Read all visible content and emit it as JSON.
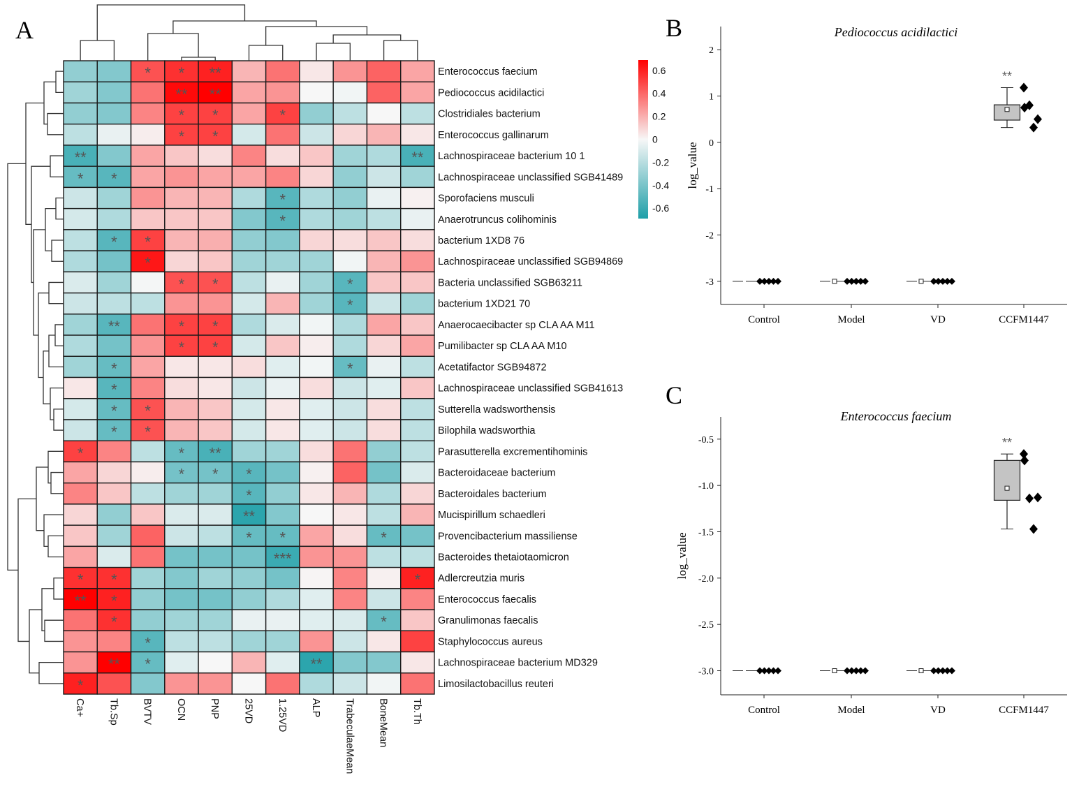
{
  "panels": {
    "a": "A",
    "b": "B",
    "c": "C"
  },
  "chart_data": [
    {
      "type": "heatmap",
      "panel": "A",
      "columns": [
        "Ca+",
        "Tb.Sp",
        "BVTV",
        "OCN",
        "PNP",
        "25VD",
        "1.25VD",
        "ALP",
        "TrabeculaeMean",
        "BoneMean",
        "Tb.Th"
      ],
      "rows": [
        "Enterococcus faecium",
        "Pediococcus acidilactici",
        "Clostridiales bacterium",
        "Enterococcus gallinarum",
        "Lachnospiraceae bacterium 10 1",
        "Lachnospiraceae unclassified SGB41489",
        "Sporofaciens musculi",
        "Anaerotruncus colihominis",
        "bacterium 1XD8 76",
        "Lachnospiraceae unclassified SGB94869",
        "Bacteria unclassified SGB63211",
        "bacterium 1XD21 70",
        "Anaerocaecibacter sp CLA AA M11",
        "Pumilibacter sp CLA AA M10",
        "Acetatifactor SGB94872",
        "Lachnospiraceae unclassified SGB41613",
        "Sutterella wadsworthensis",
        "Bilophila wadsworthia",
        "Parasutterella excrementihominis",
        "Bacteroidaceae bacterium",
        "Bacteroidales bacterium",
        "Mucispirillum schaedleri",
        "Provencibacterium massiliense",
        "Bacteroides thetaiotaomicron",
        "Adlercreutzia muris",
        "Enterococcus faecalis",
        "Granulimonas faecalis",
        "Staphylococcus aureus",
        "Lachnospiraceae bacterium MD329",
        "Limosilactobacillus reuteri"
      ],
      "values": [
        [
          -0.35,
          -0.4,
          0.5,
          0.6,
          0.65,
          0.2,
          0.4,
          0.05,
          0.3,
          0.45,
          0.25
        ],
        [
          -0.3,
          -0.4,
          0.4,
          0.72,
          0.75,
          0.25,
          0.3,
          0,
          -0.02,
          0.45,
          0.25
        ],
        [
          -0.35,
          -0.4,
          0.35,
          0.55,
          0.55,
          0.25,
          0.55,
          -0.35,
          -0.2,
          0,
          -0.2
        ],
        [
          -0.2,
          -0.05,
          0.03,
          0.55,
          0.55,
          -0.12,
          0.4,
          -0.15,
          0.1,
          0.2,
          0.05
        ],
        [
          -0.6,
          -0.4,
          0.25,
          0.15,
          0.08,
          0.35,
          0.08,
          0.15,
          -0.3,
          -0.25,
          -0.6
        ],
        [
          -0.5,
          -0.55,
          0.25,
          0.3,
          0.25,
          0.25,
          0.35,
          0.1,
          -0.35,
          -0.15,
          -0.3
        ],
        [
          -0.15,
          -0.3,
          0.3,
          0.2,
          0.2,
          -0.25,
          -0.55,
          -0.25,
          -0.35,
          -0.05,
          0.02
        ],
        [
          -0.12,
          -0.25,
          0.15,
          0.15,
          0.15,
          -0.4,
          -0.55,
          -0.25,
          -0.3,
          -0.2,
          -0.05
        ],
        [
          -0.2,
          -0.55,
          0.55,
          0.2,
          0.22,
          -0.35,
          -0.4,
          0.1,
          0.08,
          0.15,
          0.08
        ],
        [
          -0.25,
          -0.45,
          0.68,
          0.1,
          0.15,
          -0.3,
          -0.3,
          -0.3,
          -0.02,
          0.2,
          0.3
        ],
        [
          -0.1,
          -0.3,
          -0.01,
          0.5,
          0.5,
          -0.2,
          -0.05,
          -0.3,
          -0.55,
          0.15,
          0.15
        ],
        [
          -0.15,
          -0.2,
          -0.2,
          0.3,
          0.3,
          -0.12,
          0.2,
          -0.3,
          -0.55,
          -0.15,
          -0.3
        ],
        [
          -0.3,
          -0.55,
          0.4,
          0.55,
          0.55,
          -0.25,
          -0.1,
          -0.02,
          -0.25,
          0.25,
          0.15
        ],
        [
          -0.25,
          -0.45,
          0.3,
          0.55,
          0.55,
          -0.12,
          0.15,
          0.03,
          -0.25,
          0.1,
          0.25
        ],
        [
          -0.3,
          -0.5,
          0.25,
          0.05,
          0.05,
          0.08,
          -0.08,
          -0.02,
          -0.5,
          -0.05,
          -0.2
        ],
        [
          0.05,
          -0.55,
          0.35,
          0.08,
          0.05,
          -0.15,
          -0.05,
          0.08,
          -0.15,
          -0.08,
          0.15
        ],
        [
          -0.12,
          -0.5,
          0.5,
          0.2,
          0.15,
          -0.12,
          0.05,
          -0.08,
          -0.15,
          0.08,
          -0.2
        ],
        [
          -0.15,
          -0.5,
          0.5,
          0.2,
          0.15,
          -0.12,
          0.05,
          -0.08,
          -0.15,
          0.08,
          -0.2
        ],
        [
          0.55,
          0.35,
          -0.2,
          -0.5,
          -0.6,
          -0.3,
          -0.3,
          0.08,
          0.4,
          -0.35,
          -0.2
        ],
        [
          0.25,
          0.1,
          0.03,
          -0.45,
          -0.45,
          -0.55,
          -0.45,
          0.02,
          0.45,
          -0.45,
          -0.1
        ],
        [
          0.35,
          0.15,
          -0.2,
          -0.3,
          -0.3,
          -0.55,
          -0.35,
          0.05,
          0.2,
          -0.25,
          0.1
        ],
        [
          0.1,
          -0.35,
          0.15,
          -0.1,
          -0.1,
          -0.7,
          -0.4,
          0,
          0.05,
          -0.2,
          0.2
        ],
        [
          0.15,
          -0.3,
          0.45,
          -0.15,
          -0.2,
          -0.5,
          -0.5,
          0.25,
          0.08,
          -0.5,
          -0.45
        ],
        [
          0.25,
          -0.1,
          0.4,
          -0.45,
          -0.45,
          -0.45,
          -0.65,
          0.3,
          0.3,
          -0.2,
          -0.2
        ],
        [
          0.6,
          0.6,
          -0.3,
          -0.4,
          -0.3,
          -0.35,
          -0.45,
          0.01,
          0.35,
          0.02,
          0.65
        ],
        [
          0.75,
          0.65,
          -0.35,
          -0.45,
          -0.45,
          -0.35,
          -0.25,
          -0.08,
          0.35,
          -0.15,
          0.35
        ],
        [
          0.4,
          0.6,
          -0.35,
          -0.3,
          -0.3,
          -0.05,
          -0.05,
          -0.08,
          -0.1,
          -0.5,
          0.15
        ],
        [
          0.3,
          0.35,
          -0.55,
          -0.2,
          -0.2,
          -0.3,
          -0.3,
          0.3,
          -0.15,
          0.05,
          0.55
        ],
        [
          0.3,
          0.75,
          -0.5,
          -0.08,
          0,
          0.2,
          -0.08,
          -0.7,
          -0.4,
          -0.4,
          0.05
        ],
        [
          0.65,
          0.5,
          -0.4,
          0.3,
          0.3,
          0,
          0.4,
          -0.25,
          -0.15,
          -0.02,
          0.4
        ]
      ],
      "significance": [
        [
          "",
          "",
          "*",
          "*",
          "**",
          "",
          "",
          "",
          "",
          "",
          ""
        ],
        [
          "",
          "",
          "",
          "**",
          "**",
          "",
          "",
          "",
          "",
          "",
          ""
        ],
        [
          "",
          "",
          "",
          "*",
          "*",
          "",
          "*",
          "",
          "",
          "",
          ""
        ],
        [
          "",
          "",
          "",
          "*",
          "*",
          "",
          "",
          "",
          "",
          "",
          ""
        ],
        [
          "**",
          "",
          "",
          "",
          "",
          "",
          "",
          "",
          "",
          "",
          "**"
        ],
        [
          "*",
          "*",
          "",
          "",
          "",
          "",
          "",
          "",
          "",
          "",
          ""
        ],
        [
          "",
          "",
          "",
          "",
          "",
          "",
          "*",
          "",
          "",
          "",
          ""
        ],
        [
          "",
          "",
          "",
          "",
          "",
          "",
          "*",
          "",
          "",
          "",
          ""
        ],
        [
          "",
          "*",
          "*",
          "",
          "",
          "",
          "",
          "",
          "",
          "",
          ""
        ],
        [
          "",
          "",
          "*",
          "",
          "",
          "",
          "",
          "",
          "",
          "",
          ""
        ],
        [
          "",
          "",
          "",
          "*",
          "*",
          "",
          "",
          "",
          "*",
          "",
          ""
        ],
        [
          "",
          "",
          "",
          "",
          "",
          "",
          "",
          "",
          "*",
          "",
          ""
        ],
        [
          "",
          "**",
          "",
          "*",
          "*",
          "",
          "",
          "",
          "",
          "",
          ""
        ],
        [
          "",
          "",
          "",
          "*",
          "*",
          "",
          "",
          "",
          "",
          "",
          ""
        ],
        [
          "",
          "*",
          "",
          "",
          "",
          "",
          "",
          "",
          "*",
          "",
          ""
        ],
        [
          "",
          "*",
          "",
          "",
          "",
          "",
          "",
          "",
          "",
          "",
          ""
        ],
        [
          "",
          "*",
          "*",
          "",
          "",
          "",
          "",
          "",
          "",
          "",
          ""
        ],
        [
          "",
          "*",
          "*",
          "",
          "",
          "",
          "",
          "",
          "",
          "",
          ""
        ],
        [
          "*",
          "",
          "",
          "*",
          "**",
          "",
          "",
          "",
          "",
          "",
          ""
        ],
        [
          "",
          "",
          "",
          "*",
          "*",
          "*",
          "",
          "",
          "",
          "",
          ""
        ],
        [
          "",
          "",
          "",
          "",
          "",
          "*",
          "",
          "",
          "",
          "",
          ""
        ],
        [
          "",
          "",
          "",
          "",
          "",
          "**",
          "",
          "",
          "",
          "",
          ""
        ],
        [
          "",
          "",
          "",
          "",
          "",
          "*",
          "*",
          "",
          "",
          "*",
          ""
        ],
        [
          "",
          "",
          "",
          "",
          "",
          "",
          "***",
          "",
          "",
          "",
          ""
        ],
        [
          "*",
          "*",
          "",
          "",
          "",
          "",
          "",
          "",
          "",
          "",
          "*"
        ],
        [
          "**",
          "*",
          "",
          "",
          "",
          "",
          "",
          "",
          "",
          "",
          ""
        ],
        [
          "",
          "*",
          "",
          "",
          "",
          "",
          "",
          "",
          "",
          "*",
          ""
        ],
        [
          "",
          "",
          "*",
          "",
          "",
          "",
          "",
          "",
          "",
          "",
          ""
        ],
        [
          "",
          "**",
          "*",
          "",
          "",
          "",
          "",
          "**",
          "",
          "",
          ""
        ],
        [
          "*",
          "",
          "",
          "",
          "",
          "",
          "",
          "",
          "",
          "",
          ""
        ]
      ],
      "colorbar": {
        "ticks": [
          "0.6",
          "0.4",
          "0.2",
          "0",
          "-0.2",
          "-0.4",
          "-0.6"
        ],
        "range": [
          -0.7,
          0.7
        ],
        "colors": {
          "high": "#FF0000",
          "mid": "#F7F7F7",
          "low": "#1E9FA8"
        }
      },
      "dendrograms": {
        "rows": true,
        "columns": true
      }
    },
    {
      "type": "box",
      "panel": "B",
      "title": "Pediococcus acidilactici",
      "ylabel": "log_value",
      "categories": [
        "Control",
        "Model",
        "VD",
        "CCFM1447"
      ],
      "yticks": [
        "2",
        "1",
        "0",
        "-1",
        "-2",
        "-3"
      ],
      "ylim": [
        -3.5,
        2.5
      ],
      "boxes": [
        {
          "min": -3,
          "q1": -3,
          "median": -3,
          "q3": -3,
          "max": -3,
          "mean": null,
          "points": [
            -3,
            -3,
            -3,
            -3,
            -3
          ]
        },
        {
          "min": -3,
          "q1": -3,
          "median": -3,
          "q3": -3,
          "max": -3,
          "mean": -3,
          "points": [
            -3,
            -3,
            -3,
            -3,
            -3
          ]
        },
        {
          "min": -3,
          "q1": -3,
          "median": -3,
          "q3": -3,
          "max": -3,
          "mean": -3,
          "points": [
            -3,
            -3,
            -3,
            -3,
            -3
          ]
        },
        {
          "min": 0.32,
          "q1": 0.48,
          "median": 0.75,
          "q3": 0.81,
          "max": 1.18,
          "mean": 0.71,
          "points": [
            1.18,
            0.75,
            0.8,
            0.5,
            0.32
          ],
          "annotation": "**"
        }
      ]
    },
    {
      "type": "box",
      "panel": "C",
      "title": "Enterococcus faecium",
      "ylabel": "log_value",
      "categories": [
        "Control",
        "Model",
        "VD",
        "CCFM1447"
      ],
      "yticks": [
        "-0.5",
        "-1.0",
        "-1.5",
        "-2.0",
        "-2.5",
        "-3.0"
      ],
      "ylim": [
        -3.26,
        -0.26
      ],
      "boxes": [
        {
          "min": -3,
          "q1": -3,
          "median": -3,
          "q3": -3,
          "max": -3,
          "mean": null,
          "points": [
            -3,
            -3,
            -3,
            -3,
            -3
          ]
        },
        {
          "min": -3,
          "q1": -3,
          "median": -3,
          "q3": -3,
          "max": -3,
          "mean": -3,
          "points": [
            -3,
            -3,
            -3,
            -3,
            -3
          ]
        },
        {
          "min": -3,
          "q1": -3,
          "median": -3,
          "q3": -3,
          "max": -3,
          "mean": -3,
          "points": [
            -3,
            -3,
            -3,
            -3,
            -3
          ]
        },
        {
          "min": -1.47,
          "q1": -1.16,
          "median": -1.13,
          "q3": -0.73,
          "max": -0.66,
          "mean": -1.03,
          "points": [
            -0.66,
            -0.73,
            -1.14,
            -1.13,
            -1.47
          ],
          "annotation": "**"
        }
      ]
    }
  ]
}
